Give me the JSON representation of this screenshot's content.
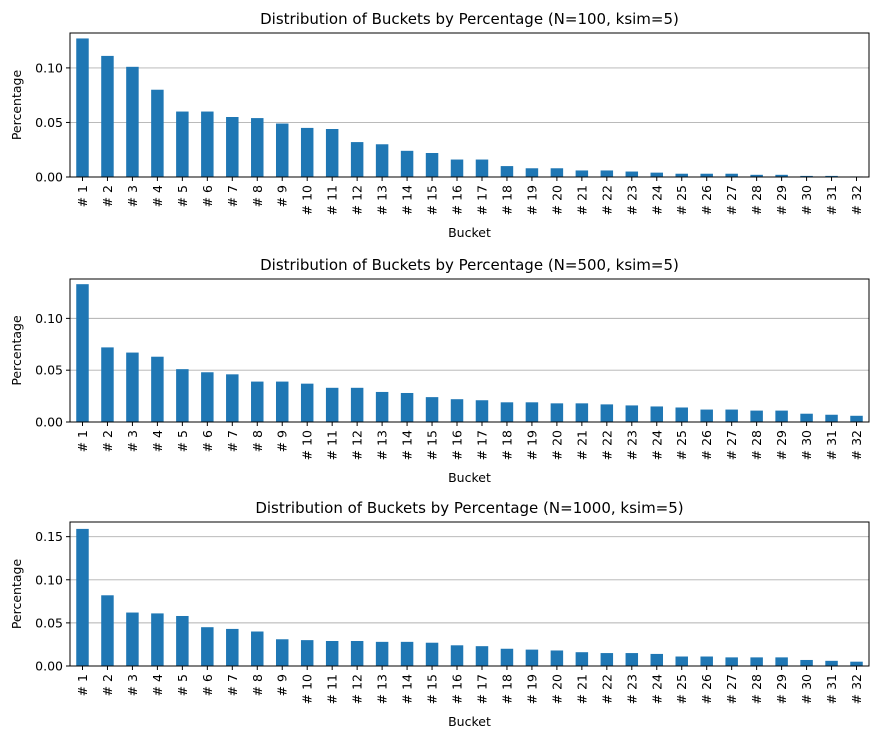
{
  "figure": {
    "bar_color": "#1f77b4",
    "grid_color": "#b0b0b0",
    "grid": "y"
  },
  "chart_data": [
    {
      "type": "bar",
      "title": "Distribution of Buckets by Percentage (N=100, ksim=5)",
      "xlabel": "Bucket",
      "ylabel": "Percentage",
      "ylim": [
        0,
        0.132
      ],
      "yticks": [
        0.0,
        0.05,
        0.1
      ],
      "ytick_labels": [
        "0.00",
        "0.05",
        "0.10"
      ],
      "categories": [
        "# 1",
        "# 2",
        "# 3",
        "# 4",
        "# 5",
        "# 6",
        "# 7",
        "# 8",
        "# 9",
        "# 10",
        "# 11",
        "# 12",
        "# 13",
        "# 14",
        "# 15",
        "# 16",
        "# 17",
        "# 18",
        "# 19",
        "# 20",
        "# 21",
        "# 22",
        "# 23",
        "# 24",
        "# 25",
        "# 26",
        "# 27",
        "# 28",
        "# 29",
        "# 30",
        "# 31",
        "# 32"
      ],
      "values": [
        0.127,
        0.111,
        0.101,
        0.08,
        0.06,
        0.06,
        0.055,
        0.054,
        0.049,
        0.045,
        0.044,
        0.032,
        0.03,
        0.024,
        0.022,
        0.016,
        0.016,
        0.01,
        0.008,
        0.008,
        0.006,
        0.006,
        0.005,
        0.004,
        0.003,
        0.003,
        0.003,
        0.002,
        0.002,
        0.001,
        0.001,
        0.0005
      ]
    },
    {
      "type": "bar",
      "title": "Distribution of Buckets by Percentage (N=500, ksim=5)",
      "xlabel": "Bucket",
      "ylabel": "Percentage",
      "ylim": [
        0,
        0.138
      ],
      "yticks": [
        0.0,
        0.05,
        0.1
      ],
      "ytick_labels": [
        "0.00",
        "0.05",
        "0.10"
      ],
      "categories": [
        "# 1",
        "# 2",
        "# 3",
        "# 4",
        "# 5",
        "# 6",
        "# 7",
        "# 8",
        "# 9",
        "# 10",
        "# 11",
        "# 12",
        "# 13",
        "# 14",
        "# 15",
        "# 16",
        "# 17",
        "# 18",
        "# 19",
        "# 20",
        "# 21",
        "# 22",
        "# 23",
        "# 24",
        "# 25",
        "# 26",
        "# 27",
        "# 28",
        "# 29",
        "# 30",
        "# 31",
        "# 32"
      ],
      "values": [
        0.133,
        0.072,
        0.067,
        0.063,
        0.051,
        0.048,
        0.046,
        0.039,
        0.039,
        0.037,
        0.033,
        0.033,
        0.029,
        0.028,
        0.024,
        0.022,
        0.021,
        0.019,
        0.019,
        0.018,
        0.018,
        0.017,
        0.016,
        0.015,
        0.014,
        0.012,
        0.012,
        0.011,
        0.011,
        0.008,
        0.007,
        0.006
      ]
    },
    {
      "type": "bar",
      "title": "Distribution of Buckets by Percentage (N=1000, ksim=5)",
      "xlabel": "Bucket",
      "ylabel": "Percentage",
      "ylim": [
        0,
        0.167
      ],
      "yticks": [
        0.0,
        0.05,
        0.1,
        0.15
      ],
      "ytick_labels": [
        "0.00",
        "0.05",
        "0.10",
        "0.15"
      ],
      "categories": [
        "# 1",
        "# 2",
        "# 3",
        "# 4",
        "# 5",
        "# 6",
        "# 7",
        "# 8",
        "# 9",
        "# 10",
        "# 11",
        "# 12",
        "# 13",
        "# 14",
        "# 15",
        "# 16",
        "# 17",
        "# 18",
        "# 19",
        "# 20",
        "# 21",
        "# 22",
        "# 23",
        "# 24",
        "# 25",
        "# 26",
        "# 27",
        "# 28",
        "# 29",
        "# 30",
        "# 31",
        "# 32"
      ],
      "values": [
        0.159,
        0.082,
        0.062,
        0.061,
        0.058,
        0.045,
        0.043,
        0.04,
        0.031,
        0.03,
        0.029,
        0.029,
        0.028,
        0.028,
        0.027,
        0.024,
        0.023,
        0.02,
        0.019,
        0.018,
        0.016,
        0.015,
        0.015,
        0.014,
        0.011,
        0.011,
        0.01,
        0.01,
        0.01,
        0.007,
        0.006,
        0.005
      ]
    }
  ]
}
